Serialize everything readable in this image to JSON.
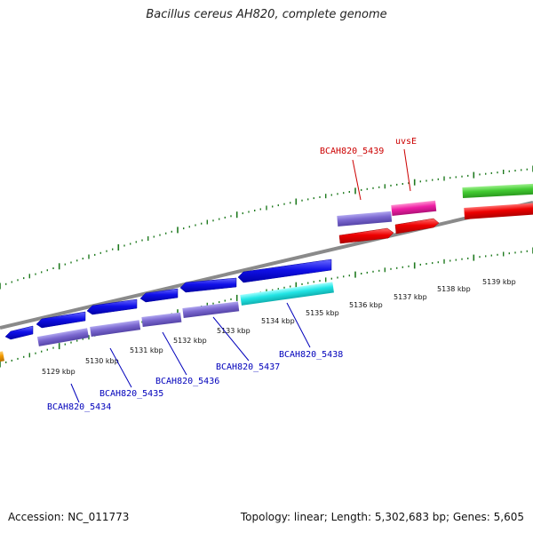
{
  "title": "Bacillus cereus AH820, complete genome",
  "footer": {
    "accession": "Accession: NC_011773",
    "summary": "Topology: linear; Length: 5,302,683 bp; Genes: 5,605"
  },
  "colors": {
    "backbone": "#888888",
    "tick": "#1f7a1f",
    "blue_gene": "#1010e0",
    "slate_gene": "#7b68d0",
    "cyan_gene": "#22e5e5",
    "red_gene": "#ee0000",
    "magenta_gene": "#ee1fa5",
    "green_gene": "#44cc33",
    "orange_gene": "#f29a00",
    "label_blue": "#0000bb",
    "label_red": "#cc0000"
  },
  "scale": {
    "lower": [
      "5129 kbp",
      "5130 kbp",
      "5131 kbp",
      "5132 kbp",
      "5133 kbp",
      "5134 kbp",
      "5135 kbp",
      "5136 kbp",
      "5137 kbp",
      "5138 kbp",
      "5139 kbp"
    ]
  },
  "gene_labels": [
    {
      "text": "BCAH820_5434",
      "color": "blue"
    },
    {
      "text": "BCAH820_5435",
      "color": "blue"
    },
    {
      "text": "BCAH820_5436",
      "color": "blue"
    },
    {
      "text": "BCAH820_5437",
      "color": "blue"
    },
    {
      "text": "BCAH820_5438",
      "color": "blue"
    },
    {
      "text": "BCAH820_5439",
      "color": "red"
    },
    {
      "text": "uvsE",
      "color": "red"
    }
  ]
}
